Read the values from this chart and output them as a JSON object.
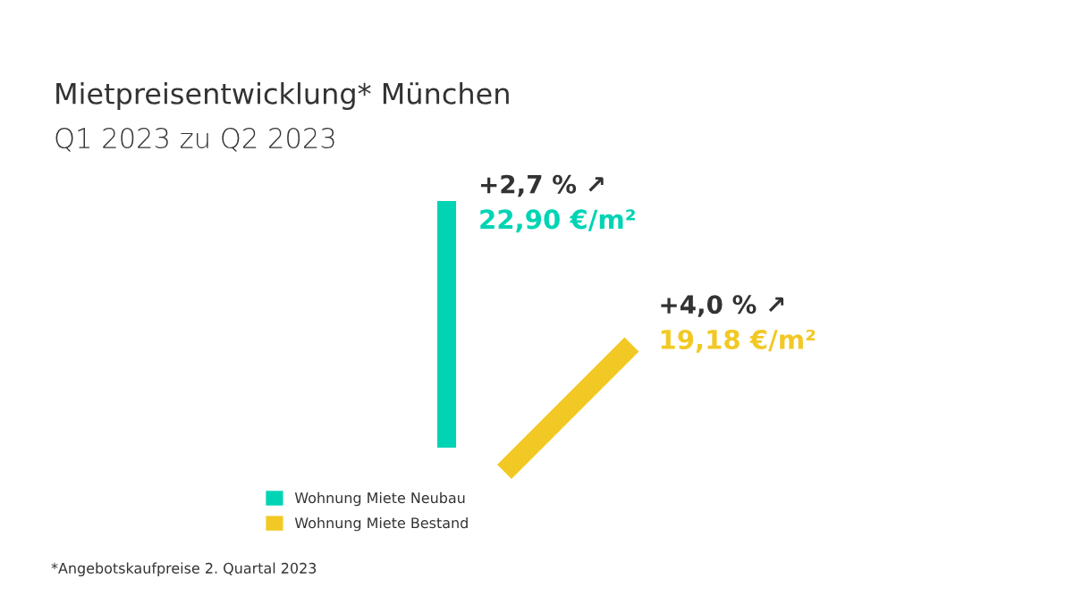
{
  "chart_data": {
    "type": "other",
    "title": "Mietpreisentwicklung* München",
    "subtitle": "Q1 2023 zu Q2 2023",
    "categories": [
      "Wohnung Miete Neubau",
      "Wohnung Miete Bestand"
    ],
    "values": [
      22.9,
      19.18
    ],
    "value_labels": [
      "22,90 €/m²",
      "19,18 €/m²"
    ],
    "colors": [
      "#00d4b4",
      "#f2c924"
    ],
    "annotations": [
      {
        "text": "+2,7 % ↗",
        "x": "Wohnung Miete Neubau"
      },
      {
        "text": "+4,0 % ↗",
        "x": "Wohnung Miete Bestand"
      },
      "*Angebotskaufpreise 2. Quartal 2023"
    ]
  }
}
